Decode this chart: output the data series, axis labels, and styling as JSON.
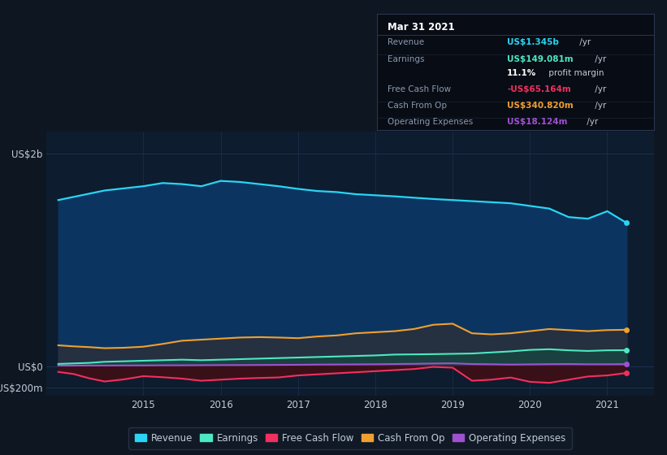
{
  "background_color": "#0e1621",
  "plot_bg_color": "#0d1c2e",
  "ylim": [
    -280,
    2200
  ],
  "xlim_min": 2013.75,
  "xlim_max": 2021.6,
  "xticks": [
    2015,
    2016,
    2017,
    2018,
    2019,
    2020,
    2021
  ],
  "series": {
    "revenue": {
      "color": "#29d4f5",
      "fill_color": "#0b3560",
      "label": "Revenue"
    },
    "earnings": {
      "color": "#4de8c2",
      "fill_color": "#1a4040",
      "label": "Earnings"
    },
    "free_cash_flow": {
      "color": "#f03060",
      "fill_color": "#5a1520",
      "label": "Free Cash Flow"
    },
    "cash_from_op": {
      "color": "#f0a030",
      "fill_color": "#3a2a0a",
      "label": "Cash From Op"
    },
    "operating_expenses": {
      "color": "#a050d0",
      "fill_color": "#2a1a40",
      "label": "Operating Expenses"
    }
  },
  "x": [
    2013.9,
    2014.1,
    2014.3,
    2014.5,
    2014.75,
    2015.0,
    2015.25,
    2015.5,
    2015.75,
    2016.0,
    2016.25,
    2016.5,
    2016.75,
    2017.0,
    2017.25,
    2017.5,
    2017.75,
    2018.0,
    2018.25,
    2018.5,
    2018.75,
    2019.0,
    2019.25,
    2019.5,
    2019.75,
    2020.0,
    2020.25,
    2020.5,
    2020.75,
    2021.0,
    2021.25
  ],
  "revenue": [
    1560,
    1590,
    1620,
    1650,
    1670,
    1690,
    1720,
    1710,
    1690,
    1740,
    1730,
    1710,
    1690,
    1665,
    1645,
    1635,
    1615,
    1605,
    1595,
    1582,
    1570,
    1560,
    1550,
    1540,
    1530,
    1505,
    1480,
    1400,
    1385,
    1455,
    1345
  ],
  "earnings": [
    20,
    25,
    30,
    40,
    45,
    50,
    55,
    60,
    55,
    60,
    65,
    70,
    75,
    80,
    85,
    90,
    95,
    100,
    108,
    110,
    112,
    115,
    118,
    128,
    138,
    152,
    158,
    148,
    142,
    148,
    149
  ],
  "free_cash_flow": [
    -55,
    -75,
    -115,
    -145,
    -125,
    -95,
    -105,
    -118,
    -138,
    -128,
    -118,
    -112,
    -107,
    -88,
    -78,
    -68,
    -58,
    -48,
    -38,
    -28,
    -8,
    -15,
    -138,
    -128,
    -108,
    -148,
    -158,
    -128,
    -98,
    -88,
    -65
  ],
  "cash_from_op": [
    195,
    185,
    178,
    168,
    172,
    182,
    208,
    238,
    248,
    258,
    268,
    272,
    268,
    262,
    278,
    288,
    308,
    318,
    328,
    348,
    388,
    398,
    308,
    298,
    308,
    328,
    348,
    338,
    328,
    338,
    341
  ],
  "operating_expenses": [
    4,
    4,
    5,
    5,
    6,
    6,
    7,
    7,
    8,
    9,
    9,
    10,
    11,
    12,
    14,
    15,
    16,
    17,
    19,
    21,
    24,
    26,
    19,
    17,
    14,
    16,
    18,
    19,
    17,
    17,
    18
  ],
  "info_box": {
    "title": "Mar 31 2021",
    "rows": [
      {
        "label": "Revenue",
        "value": "US$1.345b",
        "suffix": " /yr",
        "value_color": "#29d4f5"
      },
      {
        "label": "Earnings",
        "value": "US$149.081m",
        "suffix": " /yr",
        "value_color": "#4de8c2"
      },
      {
        "label": "",
        "value": "11.1%",
        "suffix": " profit margin",
        "value_color": "#ffffff"
      },
      {
        "label": "Free Cash Flow",
        "value": "-US$65.164m",
        "suffix": " /yr",
        "value_color": "#f03060"
      },
      {
        "label": "Cash From Op",
        "value": "US$340.820m",
        "suffix": " /yr",
        "value_color": "#f0a030"
      },
      {
        "label": "Operating Expenses",
        "value": "US$18.124m",
        "suffix": " /yr",
        "value_color": "#a050d0"
      }
    ]
  },
  "legend": {
    "items": [
      {
        "label": "Revenue",
        "color": "#29d4f5"
      },
      {
        "label": "Earnings",
        "color": "#4de8c2"
      },
      {
        "label": "Free Cash Flow",
        "color": "#f03060"
      },
      {
        "label": "Cash From Op",
        "color": "#f0a030"
      },
      {
        "label": "Operating Expenses",
        "color": "#a050d0"
      }
    ]
  },
  "grid_color": "#1e3050",
  "text_color": "#8a9ab0",
  "label_color": "#c0ccd8"
}
